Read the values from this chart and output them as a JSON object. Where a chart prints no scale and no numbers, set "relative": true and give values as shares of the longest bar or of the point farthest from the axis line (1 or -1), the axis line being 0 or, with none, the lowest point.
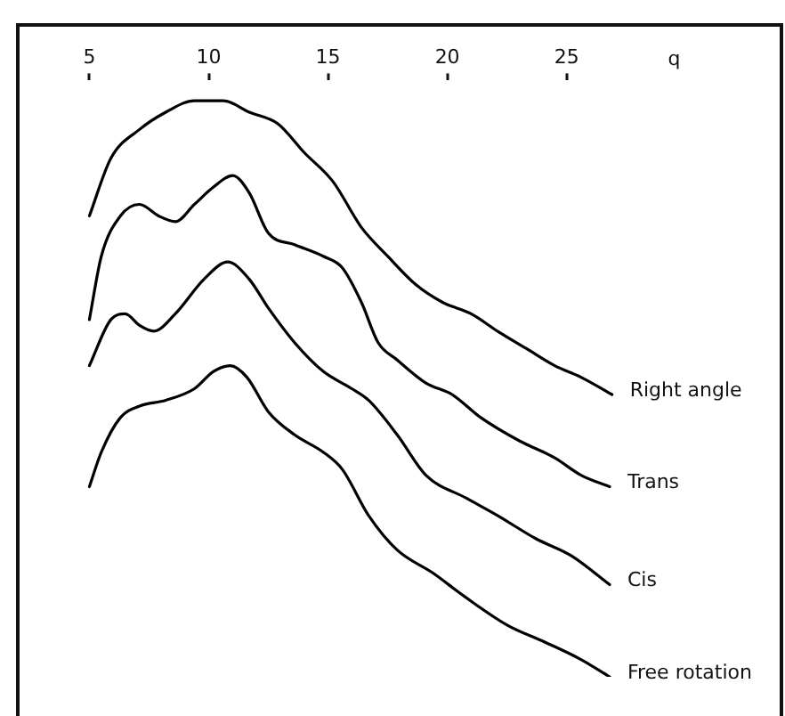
{
  "chart_data": {
    "type": "line",
    "xlabel": "q",
    "relative": true,
    "xlim": [
      2,
      34
    ],
    "xticks": [
      5,
      10,
      15,
      20,
      25
    ],
    "legend": false,
    "grid": false,
    "marker": "none",
    "line_style": "solid",
    "series": [
      {
        "name": "Right angle",
        "color": "#000000",
        "x": [
          5,
          5.9,
          7.1,
          8.2,
          9.4,
          10.6,
          11.7,
          12.9,
          14.0,
          15.2,
          16.4,
          17.5,
          18.7,
          19.8,
          21.0,
          22.1,
          23.3,
          24.5,
          25.6,
          26.9
        ],
        "values": [
          0.8,
          0.9,
          0.95,
          0.98,
          1.0,
          1.0,
          0.98,
          0.96,
          0.91,
          0.86,
          0.78,
          0.73,
          0.68,
          0.65,
          0.63,
          0.6,
          0.57,
          0.54,
          0.52,
          0.49
        ]
      },
      {
        "name": "Trans",
        "color": "#000000",
        "x": [
          5,
          5.5,
          6.3,
          7.1,
          7.9,
          8.6,
          9.4,
          10.2,
          11.0,
          11.7,
          12.5,
          13.6,
          14.8,
          15.6,
          16.4,
          17.1,
          17.9,
          19.1,
          20.2,
          21.4,
          23.0,
          24.5,
          25.6,
          26.8
        ],
        "values": [
          0.62,
          0.73,
          0.8,
          0.82,
          0.8,
          0.79,
          0.82,
          0.85,
          0.87,
          0.84,
          0.77,
          0.75,
          0.73,
          0.71,
          0.65,
          0.58,
          0.55,
          0.51,
          0.49,
          0.45,
          0.41,
          0.38,
          0.35,
          0.33
        ]
      },
      {
        "name": "Cis",
        "color": "#000000",
        "x": [
          5,
          5.9,
          6.5,
          7.1,
          7.7,
          8.6,
          9.8,
          10.8,
          11.7,
          12.5,
          13.6,
          14.8,
          16.0,
          16.7,
          17.9,
          19.1,
          20.8,
          22.1,
          23.7,
          25.2,
          26.8
        ],
        "values": [
          0.54,
          0.62,
          0.63,
          0.61,
          0.6,
          0.63,
          0.69,
          0.72,
          0.69,
          0.64,
          0.58,
          0.53,
          0.5,
          0.48,
          0.42,
          0.35,
          0.31,
          0.28,
          0.24,
          0.21,
          0.16
        ]
      },
      {
        "name": "Free rotation",
        "color": "#000000",
        "x": [
          5,
          5.5,
          6.3,
          7.1,
          8.2,
          9.4,
          10.2,
          10.9,
          11.6,
          12.5,
          13.6,
          14.8,
          15.6,
          16.7,
          17.9,
          19.4,
          20.7,
          22.5,
          24.1,
          25.6,
          26.8
        ],
        "values": [
          0.33,
          0.39,
          0.45,
          0.47,
          0.48,
          0.5,
          0.53,
          0.54,
          0.52,
          0.46,
          0.42,
          0.39,
          0.36,
          0.28,
          0.22,
          0.18,
          0.14,
          0.09,
          0.06,
          0.03,
          0.0
        ]
      }
    ]
  }
}
